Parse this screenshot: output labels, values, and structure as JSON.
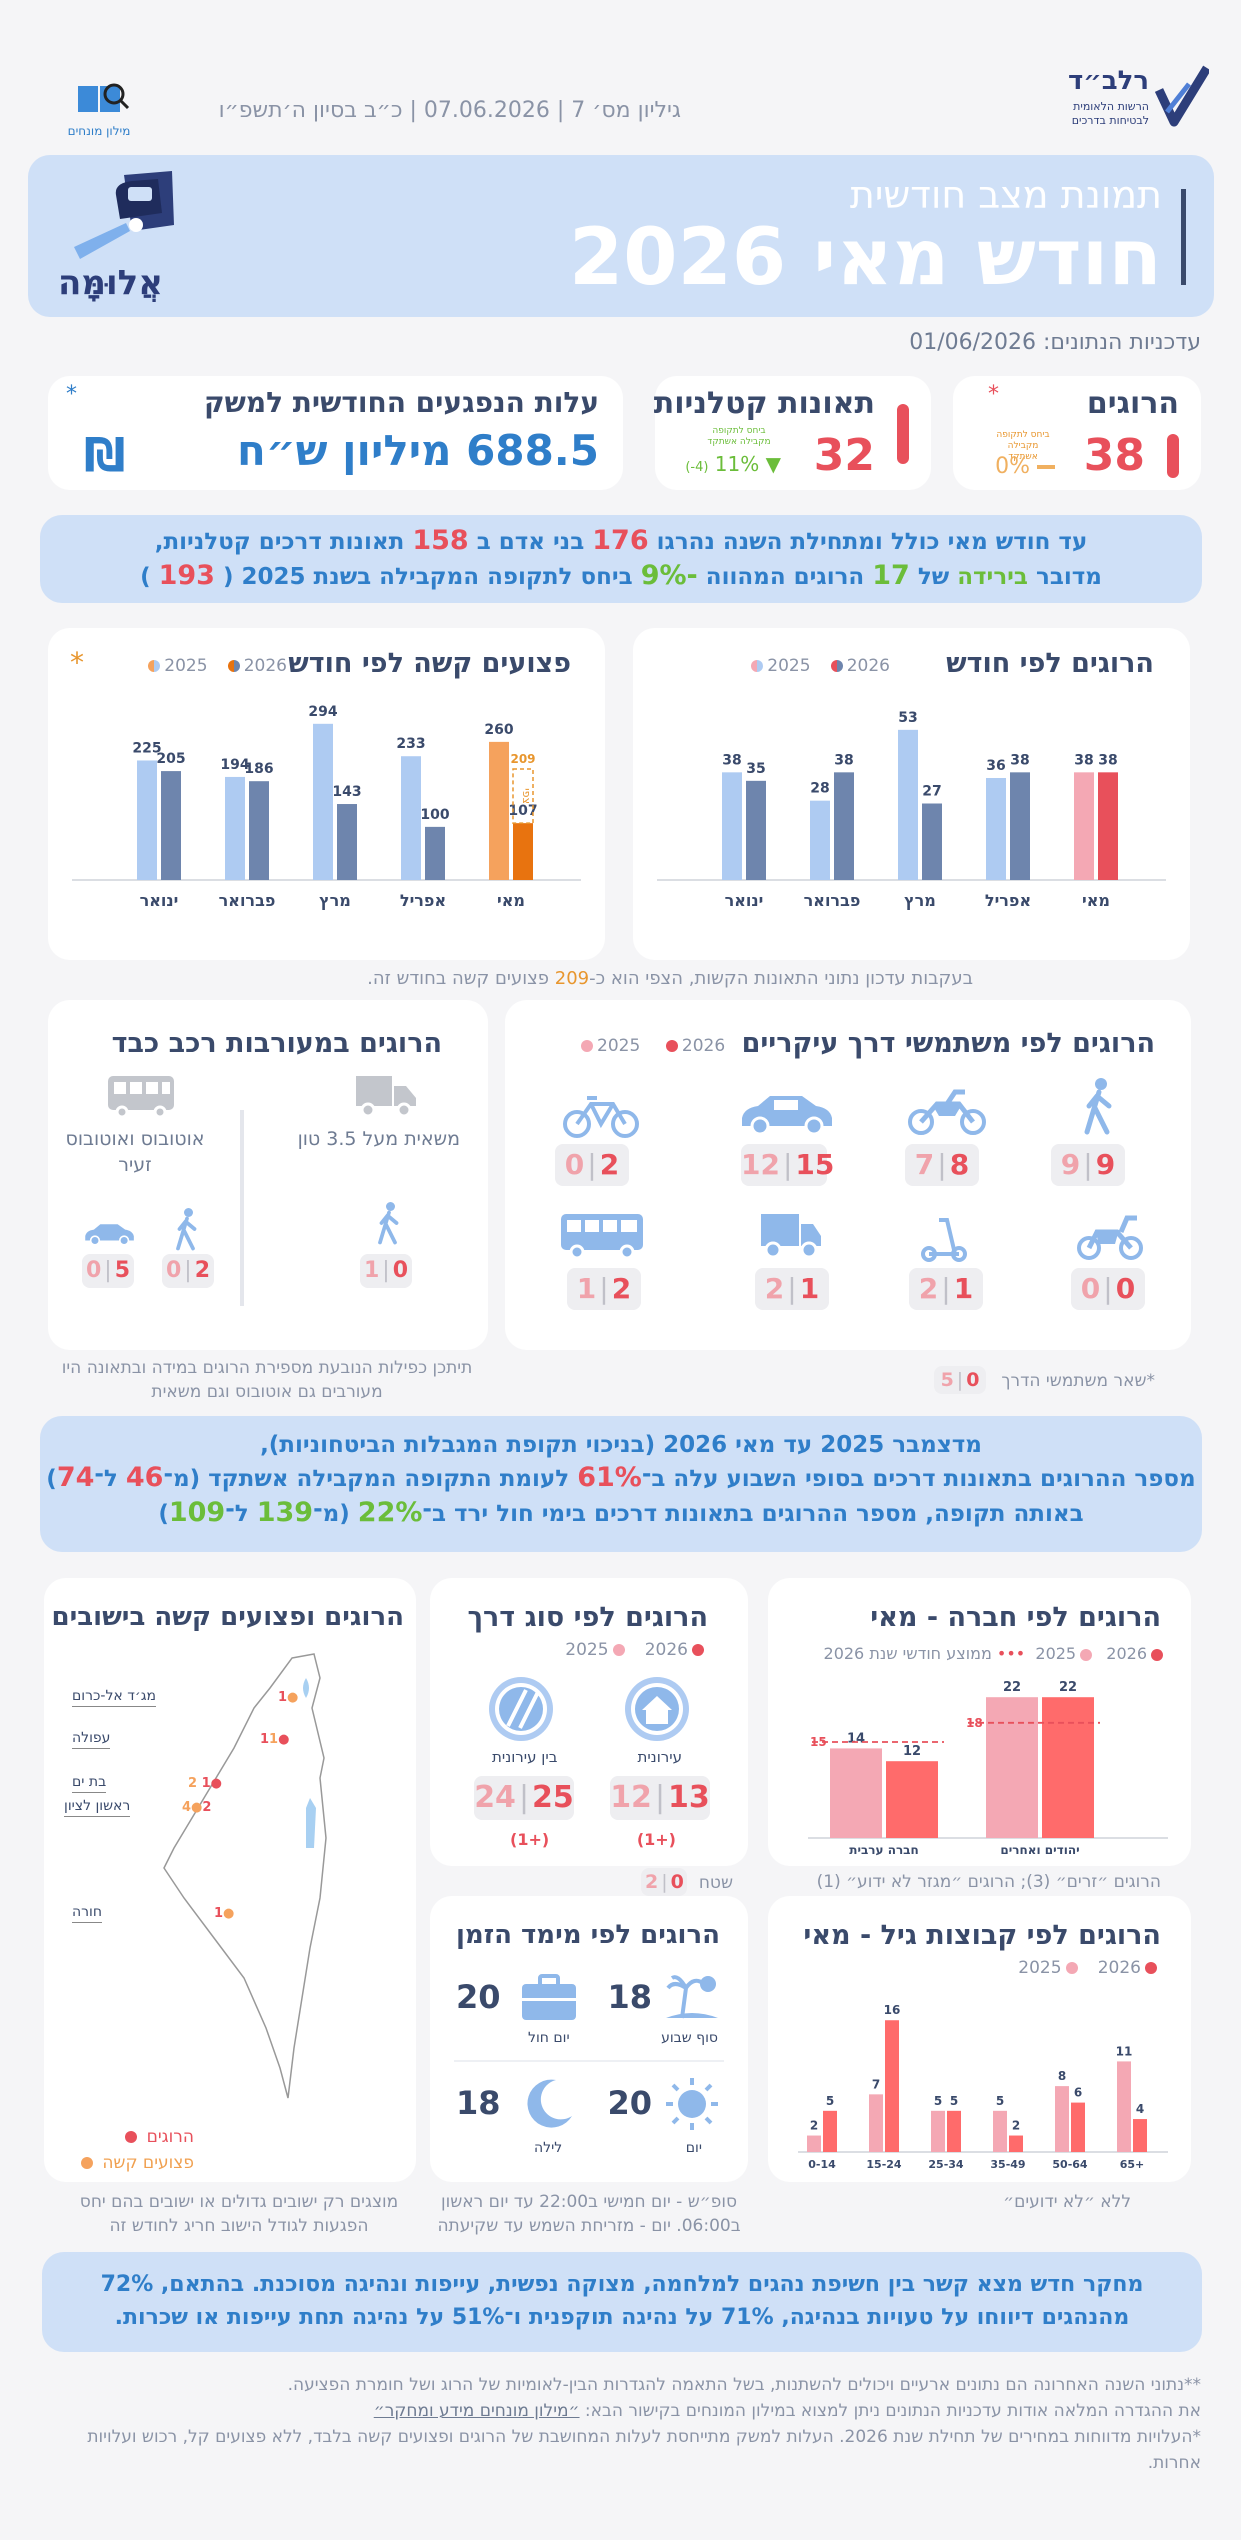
{
  "header": {
    "issue_line": "גיליון מס׳ 7 | 07.06.2026 | כ״ב בסיון ה׳תשפ״ו",
    "dictionary_label": "מילון מונחים",
    "org_name": "רלב״ד",
    "org_subtitle_1": "הרשות הלאומית",
    "org_subtitle_2": "לבטיחות בדרכים"
  },
  "banner": {
    "subtitle": "תמונת מצב חודשית",
    "title": "חודש מאי 2026",
    "logo_text": "אֲלוּמָּה"
  },
  "update_date": "עדכניות הנתונים: 01/06/2026",
  "kpis": {
    "deaths": {
      "label": "הרוגים",
      "value": "38",
      "change": "0%",
      "change_label": "ביחס לתקופה מקבילה אשתקד",
      "marker": "*"
    },
    "fatal": {
      "label": "תאונות קטלניות",
      "value": "32",
      "change": "11%",
      "change_detail": "(-4)",
      "change_label": "ביחס לתקופה מקבילה אשתקד"
    },
    "cost": {
      "label": "עלות הנפגעים החודשית למשק",
      "value": "688.5 מיליון ש״ח",
      "marker": "*",
      "currency_icon": "shekel-icon"
    }
  },
  "summary1": {
    "line1_a": "עד חודש מאי כולל ומתחילת השנה נהרגו",
    "line1_n1": "176",
    "line1_b": "בני אדם ב",
    "line1_n2": "158",
    "line1_c": "תאונות דרכים קטלניות,",
    "line2_a": "מדובר",
    "line2_b": "בירידה",
    "line2_c": "של",
    "line2_n1": "17",
    "line2_d": "הרוגים המהווה",
    "line2_pct": "9%-",
    "line2_e": "ביחס לתקופה המקבילה בשנת 2025 (",
    "line2_n2": "193",
    "line2_f": ")"
  },
  "chart_deaths": {
    "title": "הרוגים לפי חודש",
    "legend_2026": "2026",
    "legend_2025": "2025"
  },
  "chart_injured": {
    "title": "פצועים קשה לפי חודש",
    "legend_2026": "2026",
    "legend_2025": "2025",
    "marker": "*",
    "projection_label": "צפי",
    "projection_value": "209",
    "note_a": "בעקבות עדכון נתוני התאונות הקשות, הצפי הוא כ-",
    "note_num": "209",
    "note_b": "פצועים קשה בחודש זה."
  },
  "chart_data": [
    {
      "type": "bar",
      "title": "הרוגים לפי חודש",
      "categories": [
        "מאי",
        "אפריל",
        "מרץ",
        "פברואר",
        "ינואר"
      ],
      "series": [
        {
          "name": "2025",
          "values": [
            38,
            36,
            53,
            28,
            38
          ]
        },
        {
          "name": "2026",
          "values": [
            38,
            38,
            27,
            38,
            35
          ]
        }
      ],
      "ylim": [
        0,
        60
      ]
    },
    {
      "type": "bar",
      "title": "פצועים קשה לפי חודש",
      "categories": [
        "מאי",
        "אפריל",
        "מרץ",
        "פברואר",
        "ינואר"
      ],
      "series": [
        {
          "name": "2025",
          "values": [
            260,
            233,
            294,
            194,
            225
          ]
        },
        {
          "name": "2026",
          "values": [
            107,
            100,
            143,
            186,
            205
          ]
        }
      ],
      "projection": {
        "category": "מאי",
        "value": 209
      },
      "ylim": [
        0,
        320
      ]
    },
    {
      "type": "bar",
      "title": "הרוגים לפי חברה - מאי",
      "categories": [
        "יהודים ואחרים",
        "חברה ערבית"
      ],
      "series": [
        {
          "name": "2025",
          "values": [
            22,
            14
          ]
        },
        {
          "name": "2026",
          "values": [
            22,
            12
          ]
        }
      ],
      "reference": {
        "name": "ממוצע חודשי שנת 2026",
        "values": [
          18,
          15
        ]
      },
      "ylim": [
        0,
        25
      ]
    },
    {
      "type": "bar",
      "title": "הרוגים לפי קבוצות גיל - מאי",
      "categories": [
        "0-14",
        "15-24",
        "25-34",
        "35-49",
        "50-64",
        "65+"
      ],
      "series": [
        {
          "name": "2025",
          "values": [
            2,
            7,
            5,
            5,
            8,
            11
          ]
        },
        {
          "name": "2026",
          "values": [
            5,
            16,
            5,
            2,
            6,
            4
          ]
        }
      ],
      "ylim": [
        0,
        17
      ]
    }
  ],
  "road_users": {
    "title": "הרוגים לפי משתמשי דרך עיקריים",
    "legend_2026": "2026",
    "legend_2025": "2025",
    "items": [
      {
        "icon": "pedestrian-icon",
        "v2026": "9",
        "v2025": "9"
      },
      {
        "icon": "motorcycle-icon",
        "v2026": "8",
        "v2025": "7"
      },
      {
        "icon": "car-icon",
        "v2026": "15",
        "v2025": "12"
      },
      {
        "icon": "bicycle-icon",
        "v2026": "2",
        "v2025": "0"
      },
      {
        "icon": "scooter-icon",
        "v2026": "0",
        "v2025": "0"
      },
      {
        "icon": "e-scooter-icon",
        "v2026": "1",
        "v2025": "2"
      },
      {
        "icon": "truck-icon",
        "v2026": "1",
        "v2025": "2"
      },
      {
        "icon": "bus-icon",
        "v2026": "2",
        "v2025": "1"
      }
    ],
    "other_label": "*שאר משתמשי הדרך",
    "other_2026": "0",
    "other_2025": "5"
  },
  "heavy": {
    "title": "הרוגים במעורבות רכב כבד",
    "truck_label": "משאית מעל 3.5 טון",
    "bus_label": "אוטובוס ואוטובוס זעיר",
    "truck_ped_2026": "0",
    "truck_ped_2025": "1",
    "bus_ped_2026": "2",
    "bus_ped_2025": "0",
    "bus_car_2026": "5",
    "bus_car_2025": "0",
    "note": "תיתכן כפילות הנובעת מספירת הרוגים במידה ובתאונה היו מעורבים גם אוטובוס וגם משאית"
  },
  "summary2": {
    "line1": "מדצמבר 2025 עד מאי 2026 (בניכוי תקופת המגבלות הביטחוניות),",
    "line2_a": "מספר ההרוגים בתאונות דרכים בסופי השבוע עלה ב־",
    "line2_pct": "61%",
    "line2_b": "לעומת התקופה המקבילה אשתקד (מ־",
    "line2_n1": "46",
    "line2_c": "ל־",
    "line2_n2": "74",
    "line2_d": ")",
    "line3_a": "באותה תקופה, מספר ההרוגים בתאונות דרכים בימי חול ירד ב־",
    "line3_pct": "22%",
    "line3_b": "(מ־",
    "line3_n1": "139",
    "line3_c": "ל־",
    "line3_n2": "109",
    "line3_d": ")"
  },
  "society": {
    "title": "הרוגים לפי חברה - מאי",
    "legend_2026": "2026",
    "legend_2025": "2025",
    "legend_avg": "ממוצע חודשי שנת 2026",
    "note": "הרוגים ״זרים״ (3); הרוגים ״מגזר לא ידוע״ (1)"
  },
  "roadtype": {
    "title": "הרוגים לפי סוג דרך",
    "legend_2026": "2026",
    "legend_2025": "2025",
    "urban_label": "עירונית",
    "inter_label": "בין עירונית",
    "urban_2026": "13",
    "urban_2025": "12",
    "urban_diff": "(1+)",
    "inter_2026": "25",
    "inter_2025": "24",
    "inter_diff": "(1+)",
    "field_label": "שטח",
    "field_2026": "0",
    "field_2025": "2"
  },
  "map": {
    "title": "הרוגים ופצועים קשה בישובים",
    "towns": [
      {
        "name": "מג׳ד אל-כרום",
        "d": "1",
        "i": "0"
      },
      {
        "name": "עפולה",
        "d": "1",
        "i": "1"
      },
      {
        "name": "בת ים",
        "d": "2",
        "i": "1"
      },
      {
        "name": "ראשון לציון",
        "d": "4",
        "i": "2"
      },
      {
        "name": "חורה",
        "d": "1",
        "i": "0"
      }
    ],
    "legend_deaths": "הרוגים",
    "legend_injured": "פצועים קשה",
    "note": "מוצגים רק ישובים גדולים או ישובים בהם יחס הפגעות לגודל הישוב חריג לחודש זה"
  },
  "agegroups": {
    "title": "הרוגים לפי קבוצות גיל - מאי",
    "legend_2026": "2026",
    "legend_2025": "2025",
    "note": "ללא ״לא ידועים״"
  },
  "time": {
    "title": "הרוגים לפי מימד הזמן",
    "weekend_label": "סוף שבוע",
    "weekend_value": "18",
    "weekday_label": "יום חול",
    "weekday_value": "20",
    "day_label": "יום",
    "day_value": "20",
    "night_label": "לילה",
    "night_value": "18",
    "note": "סופ״ש - יום חמישי ב22:00 עד יום ראשון ב06:00. יום - מזריחת השמש עד שקיעתה"
  },
  "research": {
    "line1": "מחקר חדש מצא קשר בין חשיפת נהגים למלחמה, מצוקה נפשית, עייפות ונהיגה מסוכנת. בהתאם, 72%",
    "line2": "מהנהגים דיווחו על טעויות בנהיגה, 71% על נהיגה תוקפנית ו־51% על נהיגה תחת עייפות או שכרות."
  },
  "footnotes": {
    "f1": "**נתוני השנה האחרונה הם נתונים ארעיים ויכולים להשתנות, בשל התאמה להגדרות הבין-לאומיות של הרוג ושל חומרת הפציעה.",
    "f2": "את ההגדרה המלאה אודות עדכניות הנתונים ניתן למצוא במילון המונחים בקישור הבא: ",
    "f2_link": "״מילון מונחים מידע ומחקר״",
    "f3": "*העלויות מדווחות במחירים של תחילת שנת 2026. העלות למשק מתייחסת לעלות המחושבת של הרוגים ופצועים קשה בלבד, ללא פצועים קל, רכוש ועלויות אחרות."
  },
  "colors": {
    "navy": "#3a4a6b",
    "red": "#e8505b",
    "pink": "#f4a8b4",
    "lightblue": "#aecbf2",
    "steel": "#6e85ad",
    "orange": "#f5a25d",
    "darkorange": "#e8730f",
    "green": "#6bbd3a",
    "panel": "#cfe0f7"
  }
}
